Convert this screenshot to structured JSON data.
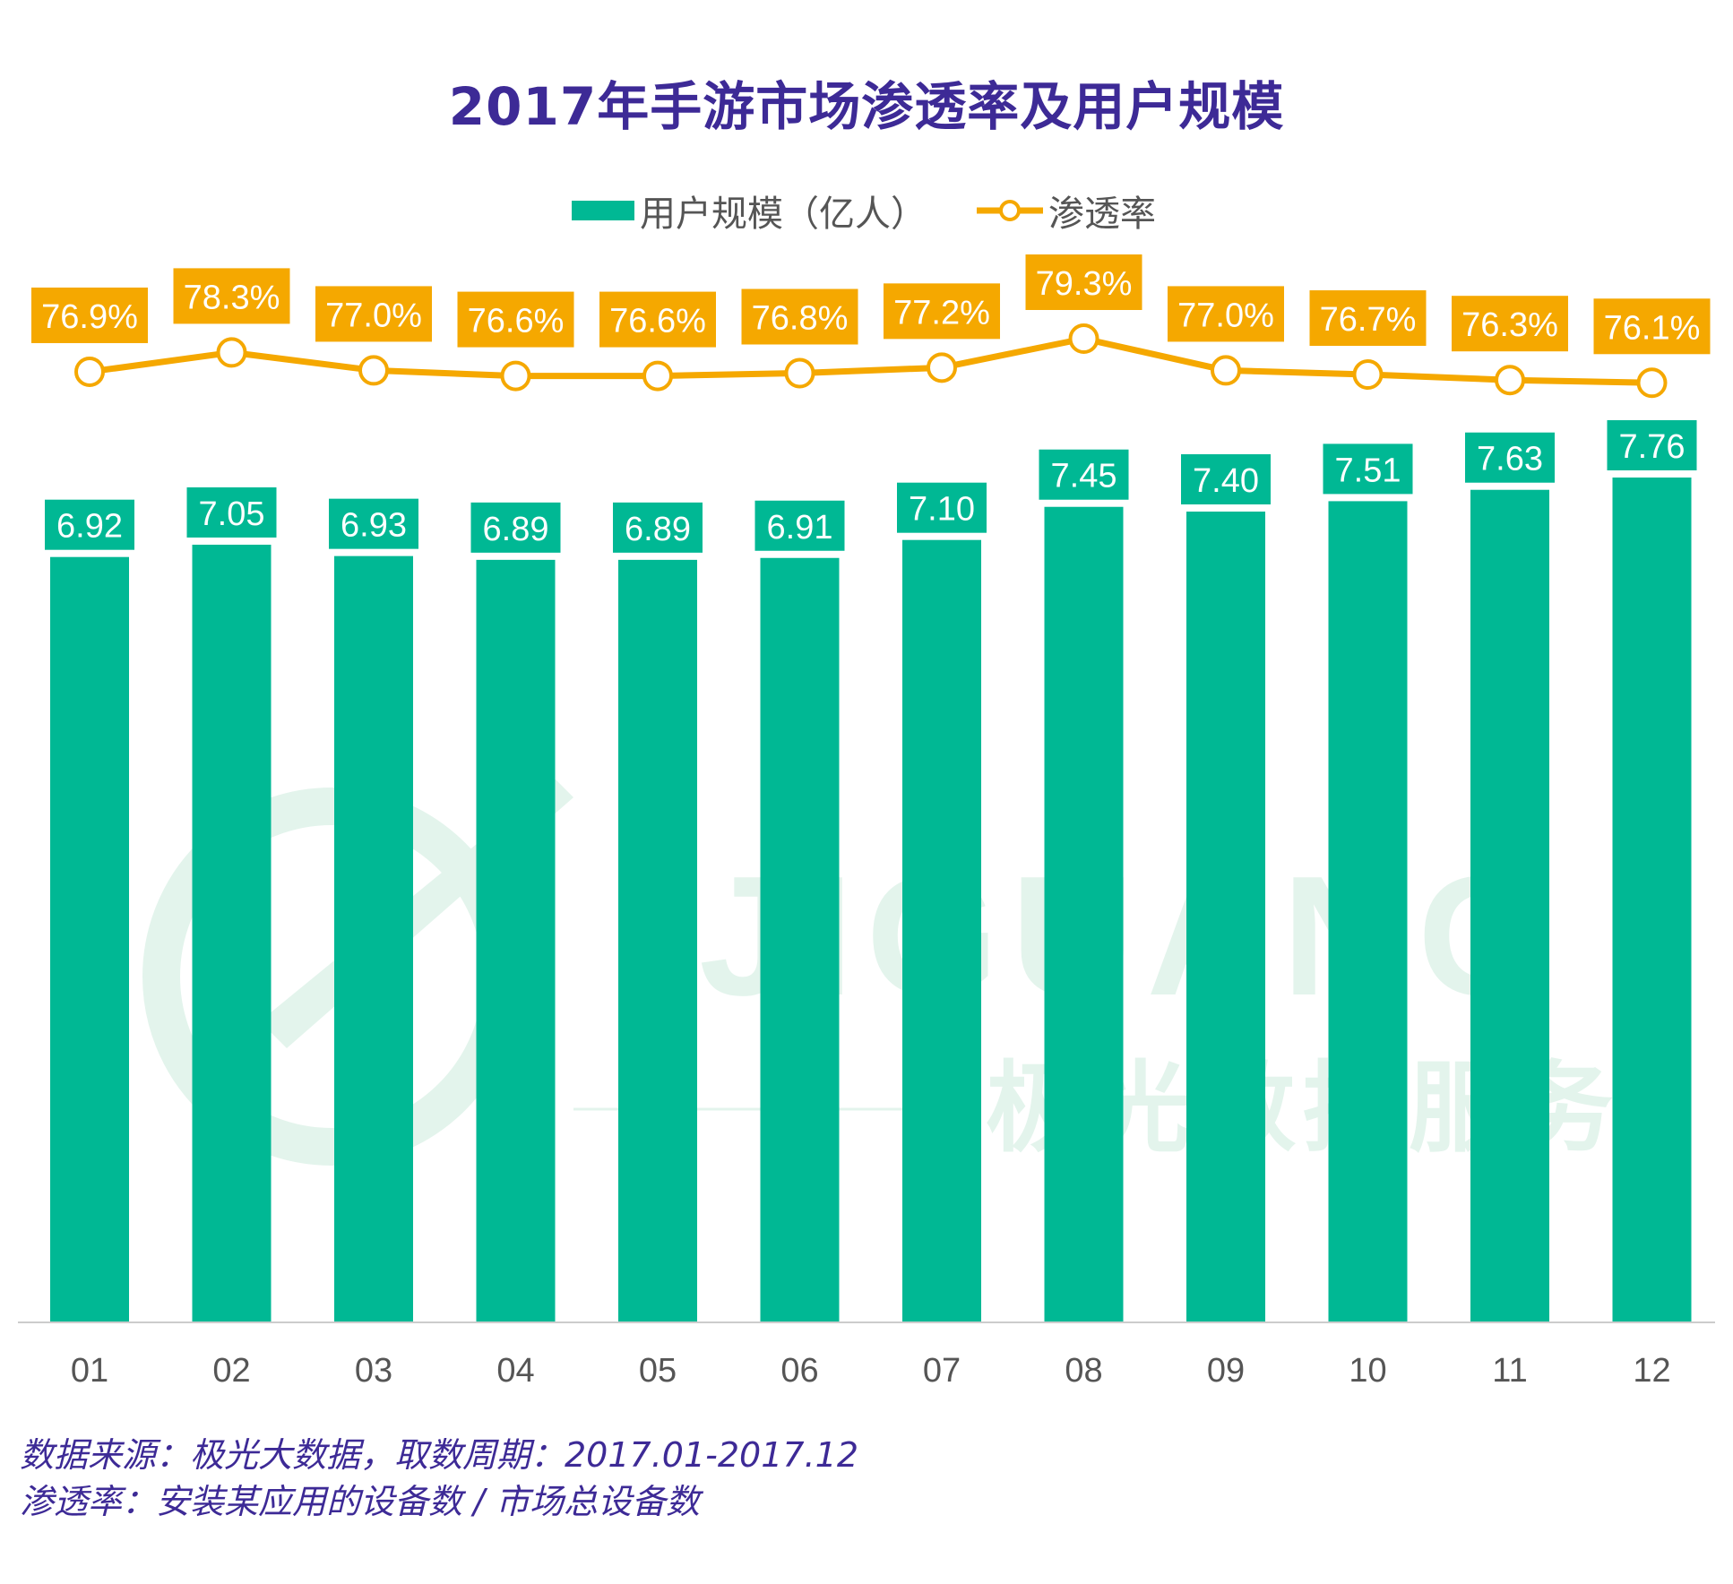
{
  "title": "2017年手游市场渗透率及用户规模",
  "legend": {
    "bar_label": "用户规模（亿人）",
    "line_label": "渗透率"
  },
  "watermark": {
    "text_latin": "JIGUANG",
    "text_cn": "极光数据服务"
  },
  "colors": {
    "bar": "#00b894",
    "line": "#f5a800",
    "title": "#3d2a96",
    "axis_text": "#555555",
    "watermark": "#e3f4ec"
  },
  "chart_data": {
    "type": "bar",
    "categories": [
      "01",
      "02",
      "03",
      "04",
      "05",
      "06",
      "07",
      "08",
      "09",
      "10",
      "11",
      "12"
    ],
    "series": [
      {
        "name": "用户规模（亿人）",
        "type": "bar",
        "values": [
          6.92,
          7.05,
          6.93,
          6.89,
          6.89,
          6.91,
          7.1,
          7.45,
          7.4,
          7.51,
          7.63,
          7.76
        ],
        "labels": [
          "6.92",
          "7.05",
          "6.93",
          "6.89",
          "6.89",
          "6.91",
          "7.10",
          "7.45",
          "7.40",
          "7.51",
          "7.63",
          "7.76"
        ]
      },
      {
        "name": "渗透率",
        "type": "line",
        "values": [
          76.9,
          78.3,
          77.0,
          76.6,
          76.6,
          76.8,
          77.2,
          79.3,
          77.0,
          76.7,
          76.3,
          76.1
        ],
        "labels": [
          "76.9%",
          "78.3%",
          "77.0%",
          "76.6%",
          "76.6%",
          "76.8%",
          "77.2%",
          "79.3%",
          "77.0%",
          "76.7%",
          "76.3%",
          "76.1%"
        ]
      }
    ]
  },
  "footer": {
    "line1": "数据来源：极光大数据，取数周期：2017.01-2017.12",
    "line2": "渗透率：安装某应用的设备数 / 市场总设备数"
  }
}
